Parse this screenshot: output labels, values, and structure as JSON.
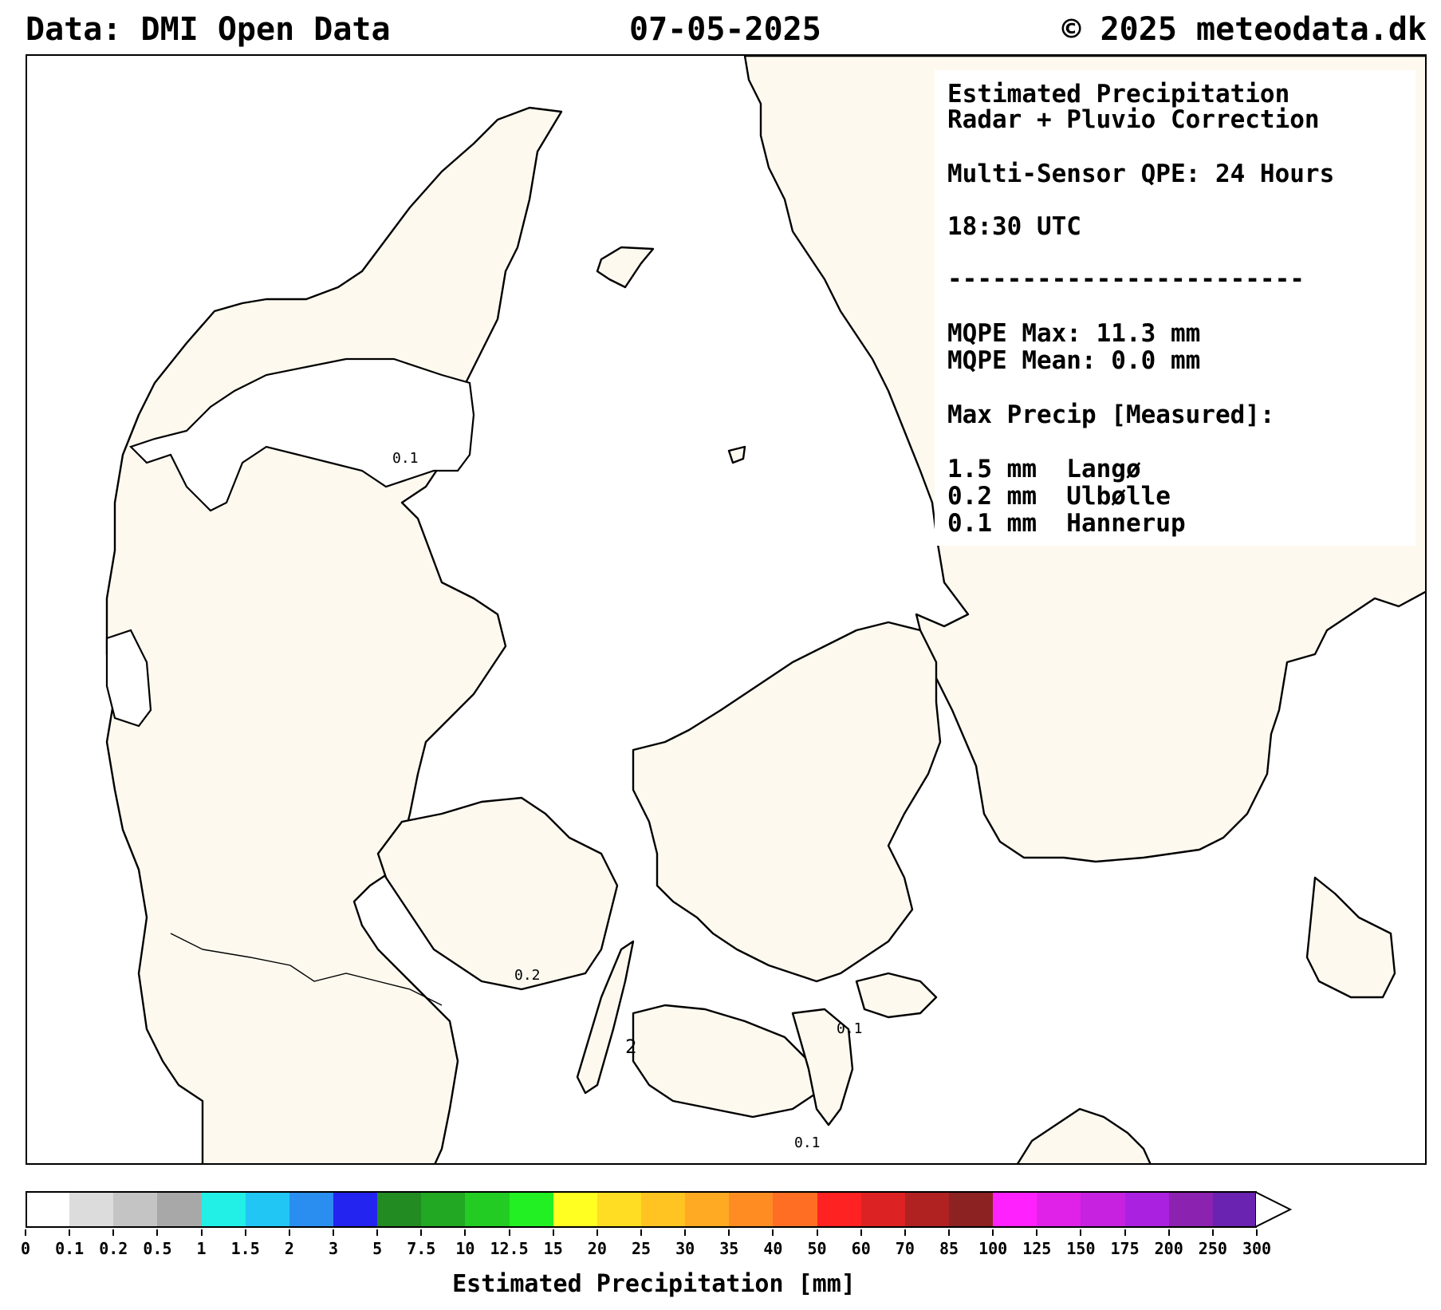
{
  "header": {
    "left": "Data: DMI Open Data",
    "center": "07-05-2025",
    "right": "© 2025 meteodata.dk"
  },
  "info_box": {
    "lines": [
      "Estimated Precipitation",
      "Radar + Pluvio Correction",
      "Multi-Sensor QPE: 24 Hours",
      "18:30 UTC",
      "------------------------",
      "MQPE Max: 11.3 mm",
      "MQPE Mean: 0.0 mm",
      "Max Precip [Measured]:",
      "1.5 mm  Langø",
      "0.2 mm  Ulbølle",
      "0.1 mm  Hannerup"
    ]
  },
  "map_labels": [
    {
      "id": "label-limfjord",
      "text": "0.1"
    },
    {
      "id": "label-fyn",
      "text": "0.2"
    },
    {
      "id": "label-lolland",
      "text": "2"
    },
    {
      "id": "label-falster",
      "text": "0.1"
    },
    {
      "id": "label-moen",
      "text": "0.1"
    }
  ],
  "colors": {
    "land": "#fdf9ef",
    "sea": "#ffffff",
    "outline": "#000000"
  },
  "colorbar": {
    "label": "Estimated Precipitation [mm]",
    "ticks": [
      "0",
      "0.1",
      "0.2",
      "0.5",
      "1",
      "1.5",
      "2",
      "3",
      "5",
      "7.5",
      "10",
      "12.5",
      "15",
      "20",
      "25",
      "30",
      "35",
      "40",
      "50",
      "60",
      "70",
      "85",
      "100",
      "125",
      "150",
      "175",
      "200",
      "250",
      "300"
    ],
    "colors": [
      "#ffffff",
      "#dcdcdc",
      "#c4c4c4",
      "#a8a8a8",
      "#22f0e6",
      "#22c6f4",
      "#2a8ef0",
      "#2424f0",
      "#228b22",
      "#22a822",
      "#22cc22",
      "#22f022",
      "#ffff22",
      "#ffdd22",
      "#ffc422",
      "#ffaa22",
      "#ff8c22",
      "#ff6e22",
      "#ff2222",
      "#dc2222",
      "#b02222",
      "#8c2222",
      "#ff22ff",
      "#e022e8",
      "#c622e0",
      "#aa22e0",
      "#8c22b0",
      "#6a22b0"
    ],
    "extend_color": "#ffffff"
  }
}
